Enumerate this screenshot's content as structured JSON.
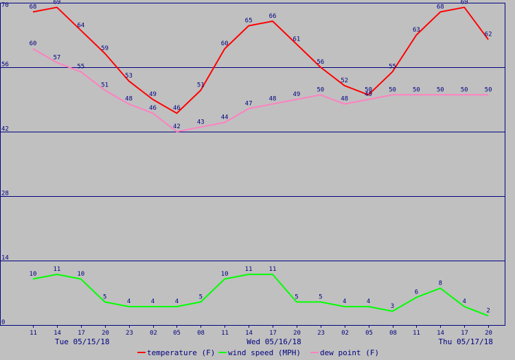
{
  "chart_data": {
    "type": "line",
    "ylim": [
      0,
      70
    ],
    "y_ticks": [
      "0",
      "14",
      "28",
      "42",
      "56",
      "70"
    ],
    "x_ticks": [
      "11",
      "14",
      "17",
      "20",
      "23",
      "02",
      "05",
      "08",
      "11",
      "14",
      "17",
      "20",
      "23",
      "02",
      "05",
      "08",
      "11",
      "14",
      "17",
      "20"
    ],
    "date_labels": [
      {
        "tick_index": 2,
        "text": "Tue 05/15/18"
      },
      {
        "tick_index": 10,
        "text": "Wed 05/16/18"
      },
      {
        "tick_index": 18,
        "text": "Thu 05/17/18"
      }
    ],
    "grid": true,
    "legend_position": "bottom",
    "series": [
      {
        "name": "temperature (F)",
        "color": "#ff0000",
        "values": [
          68,
          69,
          64,
          59,
          53,
          49,
          46,
          51,
          60,
          65,
          66,
          61,
          56,
          52,
          50,
          55,
          63,
          68,
          69,
          62
        ]
      },
      {
        "name": "wind speed (MPH)",
        "color": "#00ff00",
        "values": [
          10,
          11,
          10,
          5,
          4,
          4,
          4,
          5,
          10,
          11,
          11,
          5,
          5,
          4,
          4,
          3,
          6,
          8,
          4,
          2
        ]
      },
      {
        "name": "dew point (F)",
        "color": "#ff80c0",
        "values": [
          60,
          57,
          55,
          51,
          48,
          46,
          42,
          43,
          44,
          47,
          48,
          49,
          50,
          48,
          49,
          50,
          50,
          50,
          50,
          50
        ]
      }
    ]
  },
  "colors": {
    "background": "#c0c0c0",
    "axis": "#000080",
    "grid": "#000080"
  }
}
